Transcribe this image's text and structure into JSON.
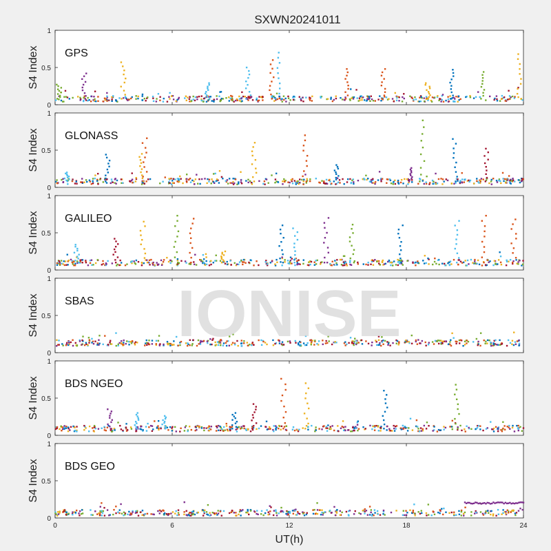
{
  "figure": {
    "title": "SXWN20241011",
    "watermark": "IONISE",
    "xlabel": "UT(h)",
    "ylabel": "S4 Index"
  },
  "colors": [
    "#0072bd",
    "#d95319",
    "#edb120",
    "#7e2f8e",
    "#77ac30",
    "#4dbeee",
    "#a2142f"
  ],
  "chart_data": [
    {
      "type": "scatter",
      "label": "GPS",
      "xlim": [
        0,
        24
      ],
      "ylim": [
        0,
        1
      ],
      "xticks": [
        "0",
        "6",
        "12",
        "18",
        "24"
      ],
      "yticks": [
        "0",
        "0.5",
        "1"
      ],
      "baseline": 0.08,
      "bursts": [
        [
          0.2,
          0.27,
          4
        ],
        [
          1.5,
          0.42,
          3
        ],
        [
          3.5,
          0.57,
          2
        ],
        [
          7.8,
          0.29,
          5
        ],
        [
          9.9,
          0.5,
          5
        ],
        [
          11.1,
          0.6,
          1
        ],
        [
          11.5,
          0.7,
          5
        ],
        [
          15,
          0.48,
          1
        ],
        [
          16.8,
          0.48,
          1
        ],
        [
          19.1,
          0.29,
          2
        ],
        [
          20.3,
          0.47,
          0
        ],
        [
          21.9,
          0.44,
          4
        ],
        [
          23.8,
          0.68,
          2
        ]
      ]
    },
    {
      "type": "scatter",
      "label": "GLONASS",
      "xlim": [
        0,
        24
      ],
      "ylim": [
        0,
        1
      ],
      "xticks": [
        "0",
        "6",
        "12",
        "18",
        "24"
      ],
      "yticks": [
        "0",
        "0.5",
        "1"
      ],
      "baseline": 0.08,
      "bursts": [
        [
          2.7,
          0.44,
          0
        ],
        [
          4.6,
          0.66,
          1
        ],
        [
          4.4,
          0.45,
          2
        ],
        [
          10.2,
          0.6,
          2
        ],
        [
          12.8,
          0.7,
          1
        ],
        [
          14.4,
          0.3,
          0
        ],
        [
          18.8,
          0.9,
          4
        ],
        [
          18.2,
          0.26,
          3
        ],
        [
          20.5,
          0.65,
          0
        ],
        [
          22.1,
          0.52,
          6
        ],
        [
          0.6,
          0.2,
          5
        ]
      ]
    },
    {
      "type": "scatter",
      "label": "GALILEO",
      "xlim": [
        0,
        24
      ],
      "ylim": [
        0,
        1
      ],
      "xticks": [
        "0",
        "6",
        "12",
        "18",
        "24"
      ],
      "yticks": [
        "0",
        "0.5",
        "1"
      ],
      "baseline": 0.1,
      "bursts": [
        [
          1.1,
          0.34,
          5
        ],
        [
          3.1,
          0.42,
          6
        ],
        [
          4.5,
          0.65,
          2
        ],
        [
          6.2,
          0.73,
          4
        ],
        [
          7,
          0.69,
          1
        ],
        [
          11.6,
          0.6,
          0
        ],
        [
          12.3,
          0.56,
          5
        ],
        [
          13.9,
          0.7,
          3
        ],
        [
          15.2,
          0.61,
          4
        ],
        [
          17.7,
          0.6,
          0
        ],
        [
          20.6,
          0.66,
          5
        ],
        [
          22,
          0.73,
          1
        ],
        [
          23.5,
          0.68,
          1
        ],
        [
          8.6,
          0.25,
          2
        ]
      ]
    },
    {
      "type": "scatter",
      "label": "SBAS",
      "xlim": [
        0,
        24
      ],
      "ylim": [
        0,
        1
      ],
      "xticks": [
        "0",
        "6",
        "12",
        "18",
        "24"
      ],
      "yticks": [
        "0",
        "0.5",
        "1"
      ],
      "baseline": 0.13,
      "bursts": []
    },
    {
      "type": "scatter",
      "label": "BDS NGEO",
      "xlim": [
        0,
        24
      ],
      "ylim": [
        0,
        1
      ],
      "xticks": [
        "0",
        "6",
        "12",
        "18",
        "24"
      ],
      "yticks": [
        "0",
        "0.5",
        "1"
      ],
      "baseline": 0.09,
      "bursts": [
        [
          2.8,
          0.35,
          3
        ],
        [
          5.6,
          0.26,
          5
        ],
        [
          9.2,
          0.3,
          0
        ],
        [
          10.2,
          0.42,
          6
        ],
        [
          11.7,
          0.76,
          1
        ],
        [
          12.9,
          0.7,
          2
        ],
        [
          16.9,
          0.6,
          0
        ],
        [
          20.6,
          0.68,
          4
        ],
        [
          4.2,
          0.3,
          5
        ]
      ]
    },
    {
      "type": "scatter",
      "label": "BDS GEO",
      "xlim": [
        0,
        24
      ],
      "ylim": [
        0,
        1
      ],
      "xticks": [
        "0",
        "6",
        "12",
        "18",
        "24"
      ],
      "yticks": [
        "0",
        "0.5",
        "1"
      ],
      "baseline": 0.07,
      "bursts": [],
      "extra_segment": {
        "x": [
          21,
          24
        ],
        "y": 0.2,
        "series": 3
      }
    }
  ]
}
